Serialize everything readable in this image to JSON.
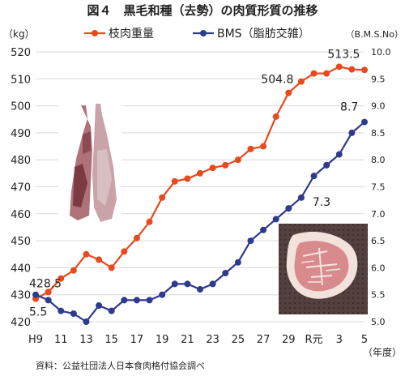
{
  "title": "図４　黒毛和種（去勢）の肉質形質の推移",
  "source_note": "資料：公益社団法人日本食肉格付協会調べ",
  "colors": {
    "carcass_weight": "#e8491d",
    "bms": "#2e3a8c",
    "grid": "#d9d9d9",
    "background": "#ffffff"
  },
  "chart_data": {
    "type": "line",
    "title": "図４　黒毛和種（去勢）の肉質形質の推移",
    "x": [
      "H9",
      "10",
      "11",
      "12",
      "13",
      "14",
      "15",
      "16",
      "17",
      "18",
      "19",
      "20",
      "21",
      "22",
      "23",
      "24",
      "25",
      "26",
      "27",
      "28",
      "29",
      "30",
      "R元",
      "2",
      "3",
      "4",
      "5"
    ],
    "x_tick_labels": [
      "H9",
      "11",
      "13",
      "15",
      "17",
      "19",
      "21",
      "23",
      "25",
      "27",
      "29",
      "R元",
      "3",
      "5"
    ],
    "xlabel": "（年度）",
    "y_left_label": "（kg）",
    "y_right_label": "（B.M.S.No）",
    "ylim_left": [
      420,
      520
    ],
    "ylim_right": [
      5.0,
      10.0
    ],
    "y_left_ticks": [
      420,
      430,
      440,
      450,
      460,
      470,
      480,
      490,
      500,
      510,
      520
    ],
    "y_right_ticks": [
      "5.0",
      "5.5",
      "6.0",
      "6.5",
      "7.0",
      "7.5",
      "8.0",
      "8.5",
      "9.0",
      "9.5",
      "10.0"
    ],
    "grid": true,
    "legend_position": "top-center",
    "series": [
      {
        "name": "枝肉重量",
        "axis": "left",
        "color": "#e8491d",
        "values": [
          428.5,
          431,
          436,
          439,
          445,
          443,
          440,
          446,
          451,
          457,
          466,
          472,
          473,
          475,
          477,
          478,
          480,
          484,
          485,
          496,
          504.8,
          509,
          512,
          512,
          514.5,
          513.5,
          513.3
        ]
      },
      {
        "name": "BMS（脂肪交雑）",
        "axis": "right",
        "color": "#2e3a8c",
        "values": [
          5.5,
          5.4,
          5.2,
          5.15,
          5.0,
          5.3,
          5.2,
          5.4,
          5.4,
          5.4,
          5.5,
          5.7,
          5.7,
          5.6,
          5.7,
          5.9,
          6.1,
          6.5,
          6.7,
          6.9,
          7.1,
          7.3,
          7.7,
          7.9,
          8.1,
          8.5,
          8.7
        ]
      }
    ],
    "annotations": [
      {
        "series": "枝肉重量",
        "x": "H9",
        "text": "428.5"
      },
      {
        "series": "枝肉重量",
        "x": "29",
        "text": "504.8"
      },
      {
        "series": "枝肉重量",
        "x": "4",
        "text": "513.5"
      },
      {
        "series": "BMS（脂肪交雑）",
        "x": "H9",
        "text": "5.5"
      },
      {
        "series": "BMS（脂肪交雑）",
        "x": "30",
        "text": "7.3"
      },
      {
        "series": "BMS（脂肪交雑）",
        "x": "5",
        "text": "8.7"
      }
    ]
  }
}
